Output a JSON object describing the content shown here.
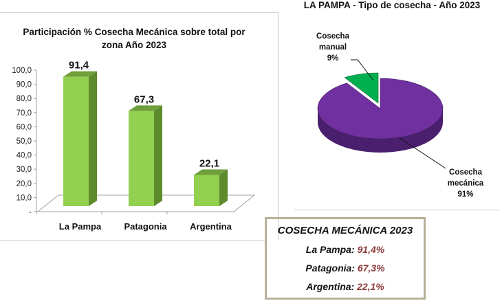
{
  "chart_data": [
    {
      "type": "bar",
      "title": "Participación % Cosecha Mecánica sobre total por zona Año 2023",
      "categories": [
        "La Pampa",
        "Patagonia",
        "Argentina"
      ],
      "values": [
        91.4,
        67.3,
        22.1
      ],
      "data_labels": [
        "91,4",
        "67,3",
        "22,1"
      ],
      "yticks": [
        "-",
        "10,0",
        "20,0",
        "30,0",
        "40,0",
        "50,0",
        "60,0",
        "70,0",
        "80,0",
        "90,0",
        "100,0"
      ],
      "ylim": [
        0,
        100
      ],
      "style": "3d",
      "grid": false,
      "colors": {
        "front": "#92d050",
        "side": "#5e8a2e",
        "top": "#6f9e3a"
      }
    },
    {
      "type": "pie",
      "title": "LA PAMPA - Tipo de cosecha - Año 2023",
      "style": "3d",
      "slices": [
        {
          "label": "Cosecha mecánica",
          "value": 91,
          "pct_label": "91%",
          "color": "#7030a0"
        },
        {
          "label": "Cosecha manual",
          "value": 9,
          "pct_label": "9%",
          "color": "#00b050"
        }
      ]
    }
  ],
  "summary": {
    "title": "COSECHA MECÁNICA 2023",
    "rows": [
      {
        "label": "La Pampa:",
        "value": "91,4%"
      },
      {
        "label": "Patagonia:",
        "value": "67,3%"
      },
      {
        "label": "Argentina:",
        "value": "22,1%"
      }
    ]
  }
}
